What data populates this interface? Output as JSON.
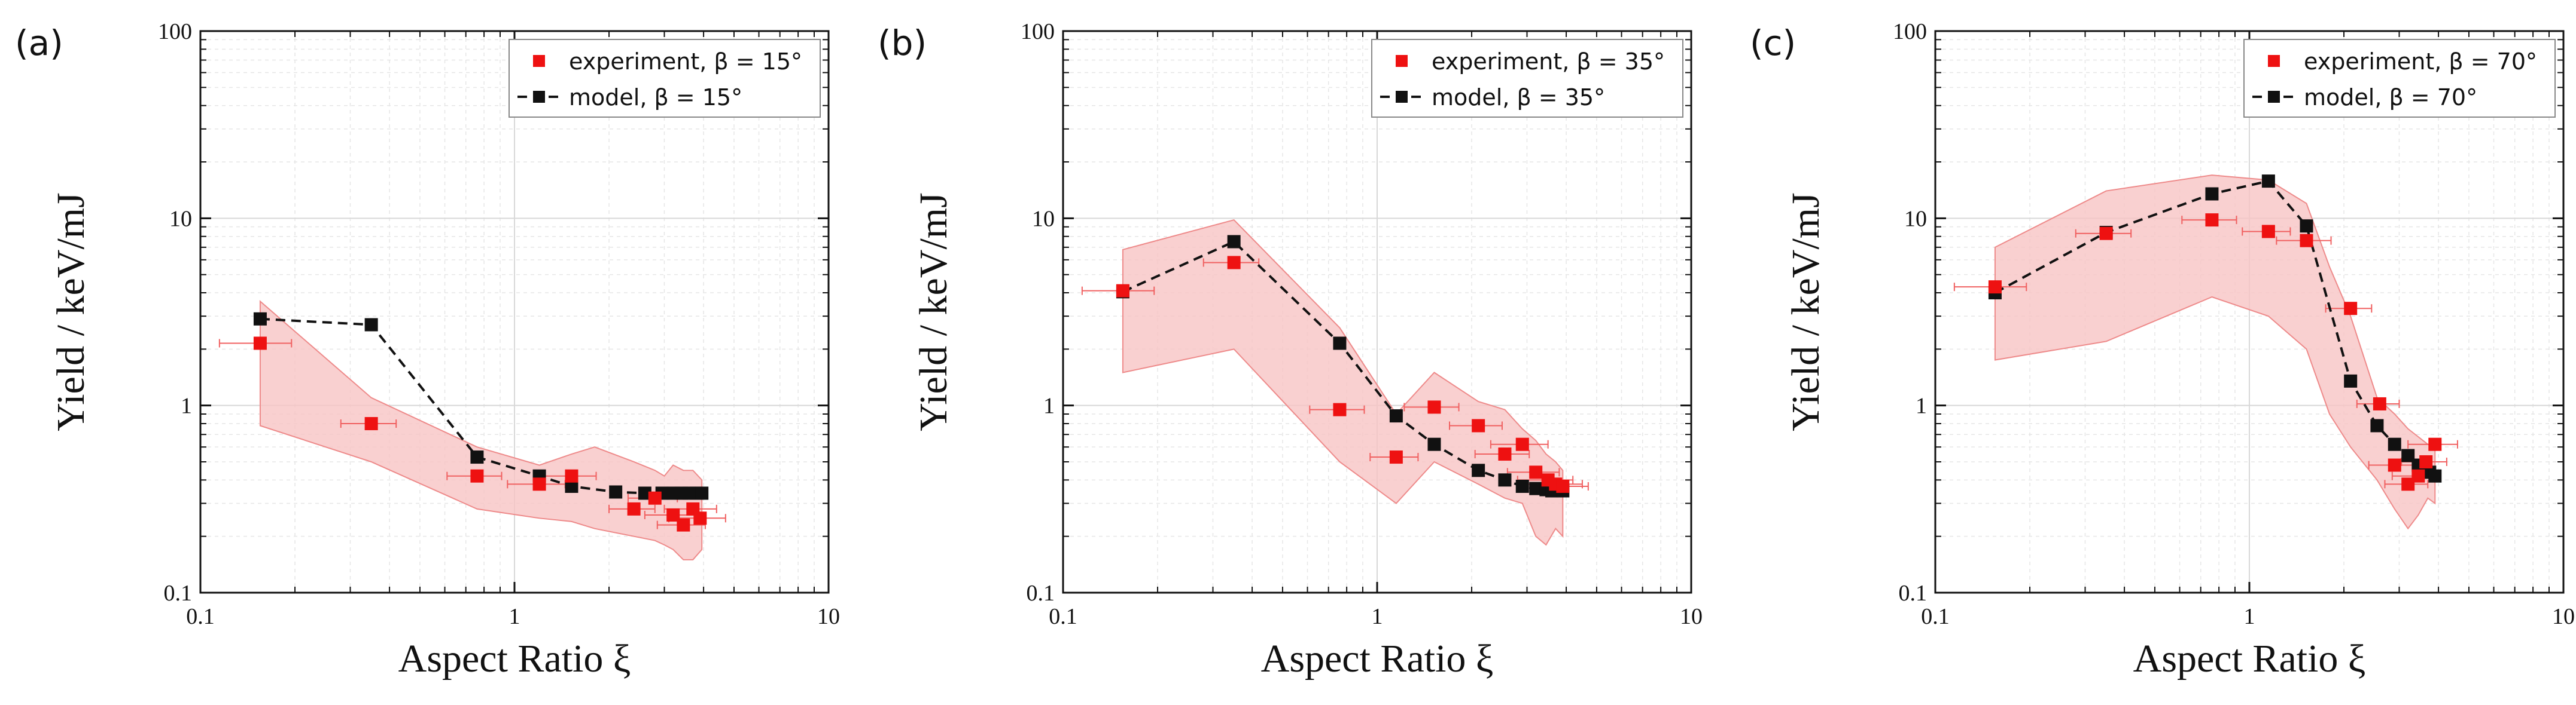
{
  "figure": {
    "x_axis_title": "Aspect Ratio ξ",
    "y_axis_title": "Yield / keV/mJ"
  },
  "colors": {
    "experiment": "#ee1111",
    "model": "#111111",
    "band_fill": "#f7c4c4",
    "band_edge": "#ee8a8a",
    "errorbar": "#f06060"
  },
  "chart_data": [
    {
      "type": "scatter",
      "panel_label": "(a)",
      "xlabel": "Aspect Ratio ξ",
      "ylabel": "Yield / keV/mJ",
      "xscale": "log",
      "yscale": "log",
      "xlim": [
        0.1,
        10
      ],
      "ylim": [
        0.1,
        100
      ],
      "x_ticks": [
        "0.1",
        "1",
        "10"
      ],
      "y_ticks": [
        "0.1",
        "1",
        "10",
        "100"
      ],
      "grid": true,
      "legend_position": "top-right",
      "legend": [
        "experiment, β = 15°",
        "model, β = 15°"
      ],
      "series": [
        {
          "name": "experiment, β = 15°",
          "marker": "square",
          "x": [
            0.155,
            0.35,
            0.76,
            1.2,
            1.52,
            2.4,
            2.8,
            3.2,
            3.45,
            3.7,
            3.9
          ],
          "y": [
            2.15,
            0.8,
            0.42,
            0.38,
            0.42,
            0.28,
            0.32,
            0.26,
            0.23,
            0.28,
            0.25
          ],
          "x_err": [
            0.04,
            0.07,
            0.15,
            0.25,
            0.3,
            0.4,
            0.5,
            0.6,
            0.6,
            0.7,
            0.8
          ]
        },
        {
          "name": "model, β = 15°",
          "marker": "square",
          "line": "dashed",
          "x": [
            0.155,
            0.35,
            0.76,
            1.2,
            1.52,
            2.1,
            2.6,
            2.95,
            3.2,
            3.4,
            3.6,
            3.8,
            3.95
          ],
          "y": [
            2.9,
            2.7,
            0.53,
            0.42,
            0.37,
            0.345,
            0.34,
            0.34,
            0.34,
            0.34,
            0.34,
            0.34,
            0.34
          ]
        }
      ],
      "band": {
        "x": [
          0.155,
          0.35,
          0.76,
          1.2,
          1.52,
          1.8,
          2.4,
          2.8,
          3.0,
          3.2,
          3.45,
          3.7,
          3.95
        ],
        "upper": [
          3.6,
          1.1,
          0.6,
          0.48,
          0.55,
          0.6,
          0.5,
          0.45,
          0.42,
          0.48,
          0.45,
          0.45,
          0.4
        ],
        "lower": [
          0.78,
          0.5,
          0.28,
          0.25,
          0.24,
          0.22,
          0.2,
          0.19,
          0.18,
          0.17,
          0.15,
          0.15,
          0.17
        ]
      }
    },
    {
      "type": "scatter",
      "panel_label": "(b)",
      "xlabel": "Aspect Ratio ξ",
      "ylabel": "Yield / keV/mJ",
      "xscale": "log",
      "yscale": "log",
      "xlim": [
        0.1,
        10
      ],
      "ylim": [
        0.1,
        100
      ],
      "x_ticks": [
        "0.1",
        "1",
        "10"
      ],
      "y_ticks": [
        "0.1",
        "1",
        "10",
        "100"
      ],
      "grid": true,
      "legend_position": "top-right",
      "legend": [
        "experiment, β = 35°",
        "model, β = 35°"
      ],
      "series": [
        {
          "name": "experiment, β = 35°",
          "marker": "square",
          "x": [
            0.155,
            0.35,
            0.76,
            1.15,
            1.52,
            2.1,
            2.55,
            2.9,
            3.2,
            3.5,
            3.7,
            3.9
          ],
          "y": [
            4.1,
            5.8,
            0.95,
            0.53,
            0.98,
            0.78,
            0.55,
            0.62,
            0.44,
            0.4,
            0.38,
            0.37
          ],
          "x_err": [
            0.04,
            0.07,
            0.15,
            0.2,
            0.3,
            0.4,
            0.5,
            0.6,
            0.6,
            0.7,
            0.8,
            0.8
          ]
        },
        {
          "name": "model, β = 35°",
          "marker": "square",
          "line": "dashed",
          "x": [
            0.155,
            0.35,
            0.76,
            1.15,
            1.52,
            2.1,
            2.55,
            2.9,
            3.2,
            3.45,
            3.6,
            3.75,
            3.9
          ],
          "y": [
            4.05,
            7.5,
            2.15,
            0.88,
            0.62,
            0.45,
            0.4,
            0.37,
            0.36,
            0.355,
            0.35,
            0.35,
            0.35
          ]
        }
      ],
      "band": {
        "x": [
          0.155,
          0.35,
          0.76,
          1.15,
          1.52,
          2.1,
          2.55,
          2.9,
          3.2,
          3.45,
          3.7,
          3.9
        ],
        "upper": [
          6.8,
          9.8,
          2.6,
          0.9,
          1.5,
          1.05,
          0.95,
          0.75,
          0.65,
          0.55,
          0.5,
          0.45
        ],
        "lower": [
          1.5,
          2.0,
          0.5,
          0.3,
          0.5,
          0.38,
          0.32,
          0.3,
          0.2,
          0.18,
          0.22,
          0.2
        ]
      }
    },
    {
      "type": "scatter",
      "panel_label": "(c)",
      "xlabel": "Aspect Ratio ξ",
      "ylabel": "Yield / keV/mJ",
      "xscale": "log",
      "yscale": "log",
      "xlim": [
        0.1,
        10
      ],
      "ylim": [
        0.1,
        100
      ],
      "x_ticks": [
        "0.1",
        "1",
        "10"
      ],
      "y_ticks": [
        "0.1",
        "1",
        "10",
        "100"
      ],
      "grid": true,
      "legend_position": "top-right",
      "legend": [
        "experiment, β = 70°",
        "model, β = 70°"
      ],
      "series": [
        {
          "name": "experiment, β = 70°",
          "marker": "square",
          "x": [
            0.155,
            0.35,
            0.76,
            1.15,
            1.52,
            2.1,
            2.6,
            2.9,
            3.2,
            3.45,
            3.65,
            3.9
          ],
          "y": [
            4.3,
            8.3,
            9.8,
            8.5,
            7.6,
            3.3,
            1.02,
            0.48,
            0.38,
            0.42,
            0.5,
            0.62
          ],
          "x_err": [
            0.04,
            0.07,
            0.15,
            0.2,
            0.3,
            0.35,
            0.4,
            0.5,
            0.5,
            0.6,
            0.6,
            0.7
          ]
        },
        {
          "name": "model, β = 70°",
          "marker": "square",
          "line": "dashed",
          "x": [
            0.155,
            0.35,
            0.76,
            1.15,
            1.52,
            2.1,
            2.55,
            2.9,
            3.2,
            3.45,
            3.6,
            3.75,
            3.9
          ],
          "y": [
            4.0,
            8.4,
            13.5,
            15.8,
            9.1,
            1.35,
            0.78,
            0.62,
            0.54,
            0.48,
            0.46,
            0.44,
            0.42
          ]
        }
      ],
      "band": {
        "x": [
          0.155,
          0.35,
          0.76,
          1.15,
          1.52,
          1.8,
          2.1,
          2.55,
          2.9,
          3.2,
          3.45,
          3.7,
          3.9
        ],
        "upper": [
          7.0,
          14.0,
          17.0,
          16.0,
          12.0,
          5.5,
          3.0,
          1.1,
          0.9,
          0.75,
          0.68,
          0.62,
          0.6
        ],
        "lower": [
          1.75,
          2.2,
          3.8,
          3.0,
          2.0,
          0.9,
          0.6,
          0.4,
          0.28,
          0.22,
          0.26,
          0.32,
          0.3
        ]
      }
    }
  ]
}
